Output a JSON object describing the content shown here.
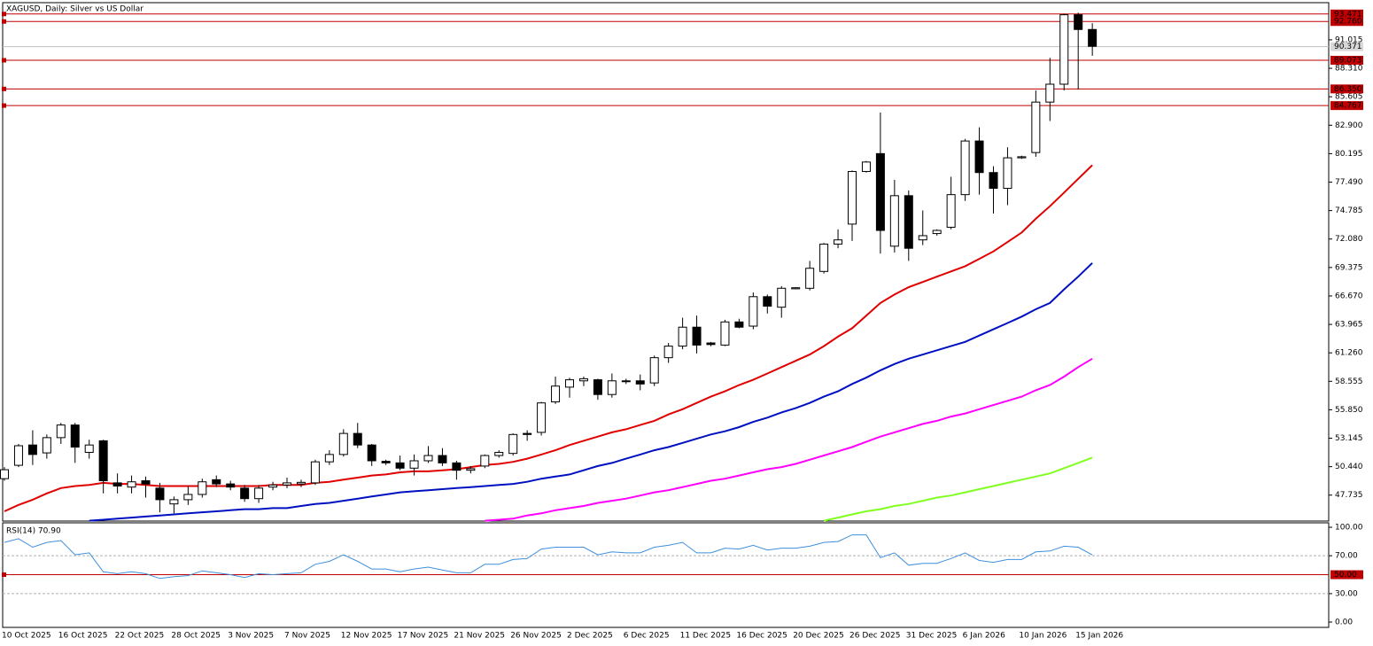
{
  "chart_data": [
    {
      "type": "candlestick",
      "title": "XAGUSD, Daily:  Silver vs US Dollar",
      "categories": [
        "10 Oct 2025",
        null,
        null,
        null,
        "16 Oct 2025",
        null,
        null,
        null,
        "22 Oct 2025",
        null,
        null,
        null,
        "28 Oct 2025",
        null,
        null,
        null,
        "3 Nov 2025",
        null,
        null,
        null,
        "7 Nov 2025",
        null,
        null,
        null,
        "12 Nov 2025",
        null,
        null,
        null,
        "17 Nov 2025",
        null,
        null,
        null,
        "21 Nov 2025",
        null,
        null,
        null,
        "26 Nov 2025",
        null,
        null,
        null,
        "2 Dec 2025",
        null,
        null,
        null,
        "6 Dec 2025",
        null,
        null,
        null,
        "11 Dec 2025",
        null,
        null,
        null,
        "16 Dec 2025",
        null,
        null,
        null,
        "20 Dec 2025",
        null,
        null,
        null,
        "26 Dec 2025",
        null,
        null,
        null,
        "31 Dec 2025",
        null,
        null,
        null,
        "6 Jan 2026",
        null,
        null,
        null,
        "10 Jan 2026",
        null,
        null,
        null,
        "15 Jan 2026",
        null
      ],
      "open": [
        49.3,
        50.57,
        52.5,
        51.75,
        53.2,
        54.4,
        51.8,
        52.9,
        48.9,
        48.5,
        49.1,
        48.4,
        46.9,
        47.3,
        47.8,
        49.2,
        48.8,
        48.4,
        47.4,
        48.5,
        48.7,
        48.8,
        48.9,
        50.9,
        51.6,
        53.6,
        52.5,
        50.95,
        50.8,
        50.3,
        51.0,
        51.5,
        50.8,
        50.1,
        50.5,
        51.5,
        51.7,
        53.6,
        53.7,
        56.6,
        58.0,
        58.6,
        58.7,
        57.3,
        58.6,
        58.6,
        58.4,
        60.8,
        61.9,
        63.7,
        62.2,
        62.0,
        64.2,
        63.8,
        66.6,
        65.6,
        67.35,
        67.4,
        69.0,
        71.6,
        73.5,
        78.5,
        80.2,
        71.4,
        76.2,
        72.0,
        72.6,
        73.2,
        76.3,
        81.4,
        78.4,
        76.9,
        79.8,
        80.3,
        85.1,
        86.8,
        93.4,
        92.0
      ],
      "high": [
        50.4,
        52.6,
        53.9,
        53.5,
        54.6,
        54.6,
        53.0,
        53.0,
        49.8,
        49.6,
        49.5,
        48.9,
        47.6,
        48.6,
        49.3,
        49.6,
        49.1,
        48.7,
        48.7,
        49.0,
        49.4,
        49.2,
        51.1,
        52.0,
        54.0,
        54.6,
        52.6,
        51.1,
        51.5,
        51.6,
        52.4,
        52.2,
        51.0,
        50.5,
        51.6,
        52.0,
        53.6,
        53.9,
        56.6,
        59.0,
        58.9,
        59.0,
        58.8,
        59.3,
        58.8,
        59.2,
        61.0,
        62.2,
        64.6,
        64.8,
        62.3,
        64.4,
        64.5,
        67.0,
        66.8,
        67.6,
        67.5,
        70.0,
        71.7,
        73.0,
        78.6,
        79.5,
        84.1,
        77.7,
        76.7,
        74.8,
        73.0,
        78.0,
        81.6,
        82.7,
        79.0,
        80.8,
        80.0,
        86.2,
        89.3,
        93.5,
        93.6,
        92.6
      ],
      "low": [
        49.1,
        50.4,
        50.6,
        51.2,
        52.6,
        50.8,
        51.2,
        47.9,
        47.9,
        47.9,
        47.5,
        46.1,
        46.0,
        46.8,
        47.5,
        48.5,
        48.2,
        47.1,
        47.0,
        48.2,
        48.4,
        48.5,
        48.7,
        50.6,
        51.4,
        52.2,
        50.5,
        50.6,
        50.1,
        49.6,
        50.8,
        50.5,
        49.2,
        49.8,
        50.3,
        51.3,
        51.5,
        52.9,
        53.4,
        56.4,
        57.0,
        58.1,
        56.8,
        57.0,
        58.3,
        57.7,
        58.1,
        60.3,
        61.6,
        61.2,
        61.9,
        61.9,
        63.6,
        63.5,
        65.0,
        64.6,
        67.3,
        67.2,
        68.8,
        71.2,
        71.9,
        78.4,
        70.7,
        70.8,
        70.0,
        71.5,
        72.4,
        73.0,
        75.7,
        76.3,
        74.5,
        75.3,
        79.7,
        79.9,
        83.3,
        86.2,
        86.3,
        89.5
      ],
      "close": [
        50.15,
        52.43,
        51.6,
        53.2,
        54.4,
        52.3,
        52.5,
        49.1,
        48.6,
        49.0,
        48.8,
        47.3,
        47.3,
        47.8,
        49.0,
        48.8,
        48.5,
        47.4,
        48.4,
        48.7,
        48.9,
        48.95,
        50.9,
        51.6,
        53.6,
        52.5,
        51.0,
        50.8,
        50.3,
        51.0,
        51.5,
        50.8,
        50.1,
        50.25,
        51.5,
        51.8,
        53.5,
        53.5,
        56.5,
        58.1,
        58.7,
        58.8,
        57.3,
        58.6,
        58.55,
        58.3,
        60.8,
        61.9,
        63.7,
        62.0,
        62.05,
        64.2,
        63.7,
        66.6,
        65.7,
        67.4,
        67.45,
        69.3,
        71.6,
        72.0,
        78.5,
        79.4,
        72.9,
        76.2,
        71.2,
        72.4,
        72.9,
        76.3,
        81.4,
        78.4,
        76.9,
        79.8,
        79.9,
        85.1,
        86.8,
        93.4,
        92.0,
        90.4
      ],
      "overlays": [
        {
          "color": "#e00000",
          "values": [
            46.2,
            46.8,
            47.3,
            47.9,
            48.4,
            48.6,
            48.7,
            48.9,
            48.8,
            48.8,
            48.7,
            48.6,
            48.6,
            48.6,
            48.6,
            48.6,
            48.6,
            48.6,
            48.6,
            48.7,
            48.7,
            48.7,
            48.9,
            49.0,
            49.2,
            49.4,
            49.6,
            49.7,
            49.9,
            50.0,
            50.0,
            50.1,
            50.2,
            50.4,
            50.6,
            50.7,
            50.9,
            51.2,
            51.6,
            52.0,
            52.5,
            52.9,
            53.3,
            53.7,
            54.0,
            54.4,
            54.8,
            55.4,
            55.9,
            56.5,
            57.1,
            57.6,
            58.2,
            58.7,
            59.3,
            59.9,
            60.5,
            61.1,
            61.9,
            62.8,
            63.6,
            64.8,
            66.0,
            66.8,
            67.5,
            68.0,
            68.5,
            69.0,
            69.5,
            70.2,
            70.9,
            71.8,
            72.7,
            74.0,
            75.2,
            76.5,
            77.8,
            79.1
          ]
        },
        {
          "color": "#0010c0",
          "values": [
            null,
            null,
            null,
            null,
            null,
            null,
            45.3,
            45.4,
            45.5,
            45.6,
            45.7,
            45.8,
            45.9,
            46.0,
            46.1,
            46.2,
            46.3,
            46.4,
            46.4,
            46.5,
            46.5,
            46.7,
            46.9,
            47.0,
            47.2,
            47.4,
            47.6,
            47.8,
            48.0,
            48.1,
            48.2,
            48.3,
            48.4,
            48.5,
            48.6,
            48.7,
            48.8,
            49.0,
            49.3,
            49.5,
            49.7,
            50.1,
            50.5,
            50.8,
            51.2,
            51.6,
            52.0,
            52.3,
            52.7,
            53.1,
            53.5,
            53.8,
            54.2,
            54.7,
            55.1,
            55.6,
            56.0,
            56.5,
            57.1,
            57.6,
            58.3,
            58.9,
            59.6,
            60.2,
            60.7,
            61.1,
            61.5,
            61.9,
            62.3,
            62.9,
            63.5,
            64.1,
            64.7,
            65.4,
            66.0,
            67.3,
            68.5,
            69.8
          ]
        },
        {
          "color": "#ff00ff",
          "values": [
            null,
            null,
            null,
            null,
            null,
            null,
            null,
            null,
            null,
            null,
            null,
            null,
            null,
            null,
            null,
            null,
            null,
            null,
            null,
            null,
            null,
            null,
            null,
            null,
            null,
            null,
            null,
            null,
            null,
            null,
            null,
            null,
            null,
            null,
            45.3,
            45.4,
            45.5,
            45.8,
            46.0,
            46.3,
            46.5,
            46.7,
            47.0,
            47.2,
            47.4,
            47.7,
            48.0,
            48.2,
            48.5,
            48.8,
            49.1,
            49.3,
            49.6,
            49.9,
            50.2,
            50.4,
            50.7,
            51.1,
            51.5,
            51.9,
            52.3,
            52.8,
            53.3,
            53.7,
            54.1,
            54.5,
            54.8,
            55.2,
            55.5,
            55.9,
            56.3,
            56.7,
            57.1,
            57.7,
            58.2,
            59.0,
            59.9,
            60.7
          ]
        },
        {
          "color": "#80ff20",
          "values": [
            null,
            null,
            null,
            null,
            null,
            null,
            null,
            null,
            null,
            null,
            null,
            null,
            null,
            null,
            null,
            null,
            null,
            null,
            null,
            null,
            null,
            null,
            null,
            null,
            null,
            null,
            null,
            null,
            null,
            null,
            null,
            null,
            null,
            null,
            null,
            null,
            null,
            null,
            null,
            null,
            null,
            null,
            null,
            null,
            null,
            null,
            null,
            null,
            null,
            null,
            null,
            null,
            null,
            null,
            null,
            null,
            null,
            null,
            45.3,
            45.6,
            45.9,
            46.2,
            46.4,
            46.7,
            46.9,
            47.2,
            47.5,
            47.7,
            48.0,
            48.3,
            48.6,
            48.9,
            49.2,
            49.5,
            49.8,
            50.3,
            50.8,
            51.3
          ]
        }
      ],
      "levels": [
        93.471,
        {
          "value": 92.76,
          "label": "92.760"
        },
        89.073,
        {
          "value": 86.35,
          "label": "86.350"
        },
        84.767
      ],
      "level_color": "#c00000",
      "current_price": 90.371,
      "ylim": [
        45.27,
        94.55
      ],
      "yticks": [
        47.735,
        {
          "value": 50.44,
          "label": "50.440"
        },
        53.145,
        {
          "value": 55.85,
          "label": "55.850"
        },
        58.555,
        {
          "value": 61.26,
          "label": "61.260"
        },
        63.965,
        {
          "value": 66.67,
          "label": "66.670"
        },
        69.375,
        {
          "value": 72.08,
          "label": "72.080"
        },
        74.785,
        {
          "value": 77.49,
          "label": "77.490"
        },
        80.195,
        {
          "value": 82.9,
          "label": "82.900"
        },
        85.605,
        {
          "value": 88.31,
          "label": "88.310"
        },
        91.015
      ]
    },
    {
      "type": "line",
      "title": "RSI(14) 70.90",
      "color": "#3f8fdc",
      "values": [
        84,
        88,
        79,
        84,
        86,
        71,
        73,
        53,
        51,
        53,
        51,
        46,
        48,
        49,
        54,
        52,
        50,
        47,
        51,
        50,
        51,
        52,
        61,
        64,
        71,
        64,
        56,
        56,
        53,
        56,
        58,
        55,
        52,
        52,
        61,
        61,
        66,
        67,
        77,
        79,
        79,
        79,
        71,
        74,
        73,
        73,
        79,
        81,
        84,
        73,
        73,
        78,
        77,
        81,
        76,
        78,
        78,
        80,
        84,
        85,
        92,
        92,
        68,
        73,
        60,
        62,
        62,
        67,
        73,
        65,
        63,
        66,
        66,
        74,
        75,
        80,
        79,
        70.9
      ],
      "ylim": [
        -5.6,
        104.7
      ],
      "yticks": [
        {
          "value": 0,
          "label": "0.00"
        },
        {
          "value": 30,
          "label": "30.00"
        },
        {
          "value": 70,
          "label": "70.00"
        },
        {
          "value": 100,
          "label": "100.00"
        }
      ],
      "dashed_levels": [
        30,
        70
      ],
      "level": {
        "value": 50,
        "label": "50.00"
      },
      "level_color": "#c00000"
    }
  ]
}
